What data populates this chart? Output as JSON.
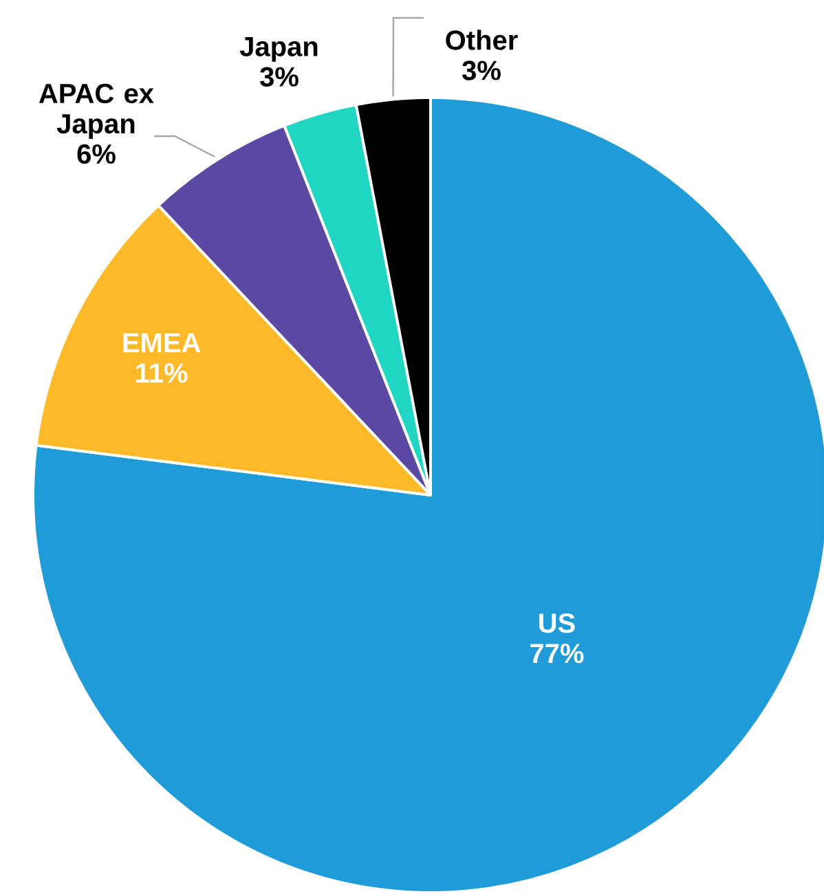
{
  "chart_data": {
    "type": "pie",
    "categories": [
      "US",
      "EMEA",
      "APAC ex Japan",
      "Japan",
      "Other"
    ],
    "values": [
      77,
      11,
      6,
      3,
      3
    ],
    "value_labels": [
      "77%",
      "11%",
      "6%",
      "3%",
      "3%"
    ],
    "colors": [
      "#1f9bd7",
      "#fdb927",
      "#5b48a2",
      "#20d5c2",
      "#000000"
    ]
  }
}
